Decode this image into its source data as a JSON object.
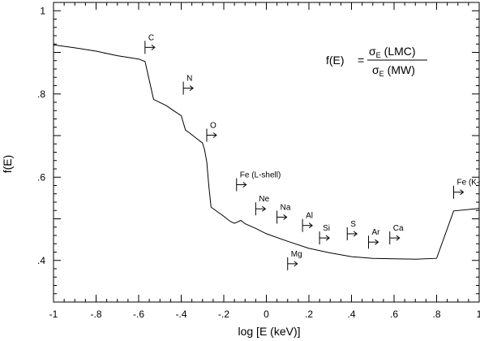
{
  "chart_data": {
    "type": "line",
    "xlabel": "log [E (keV)]",
    "ylabel": "f(E)",
    "xlim": [
      -1,
      1
    ],
    "ylim": [
      0.3,
      1.02
    ],
    "x_ticks": [
      {
        "value": -1,
        "label": "-1"
      },
      {
        "value": -0.8,
        "label": "-.8"
      },
      {
        "value": -0.6,
        "label": "-.6"
      },
      {
        "value": -0.4,
        "label": "-.4"
      },
      {
        "value": -0.2,
        "label": "-.2"
      },
      {
        "value": 0,
        "label": "0"
      },
      {
        "value": 0.2,
        "label": ".2"
      },
      {
        "value": 0.4,
        "label": ".4"
      },
      {
        "value": 0.6,
        "label": ".6"
      },
      {
        "value": 0.8,
        "label": ".8"
      },
      {
        "value": 1,
        "label": "1"
      }
    ],
    "y_ticks": [
      {
        "value": 0.4,
        "label": ".4"
      },
      {
        "value": 0.6,
        "label": ".6"
      },
      {
        "value": 0.8,
        "label": ".8"
      },
      {
        "value": 1.0,
        "label": "1"
      }
    ],
    "series": [
      {
        "x": [
          -1,
          -0.9,
          -0.8,
          -0.7,
          -0.6,
          -0.57,
          -0.53,
          -0.47,
          -0.43,
          -0.4,
          -0.38,
          -0.36,
          -0.33,
          -0.3,
          -0.29,
          -0.28,
          -0.27,
          -0.26,
          -0.2,
          -0.17,
          -0.15,
          -0.12,
          -0.1,
          -0.05,
          0,
          0.1,
          0.2,
          0.3,
          0.4,
          0.5,
          0.6,
          0.7,
          0.8,
          0.88,
          1
        ],
        "y": [
          0.918,
          0.911,
          0.903,
          0.892,
          0.884,
          0.878,
          0.787,
          0.772,
          0.758,
          0.748,
          0.713,
          0.706,
          0.694,
          0.682,
          0.665,
          0.637,
          0.578,
          0.528,
          0.506,
          0.494,
          0.489,
          0.496,
          0.488,
          0.477,
          0.464,
          0.446,
          0.429,
          0.418,
          0.409,
          0.405,
          0.404,
          0.403,
          0.405,
          0.519,
          0.525
        ]
      }
    ],
    "formula": {
      "lhs": "f(E)",
      "eq": "=",
      "num_sigma": "σ",
      "num_sub": "E",
      "num_text": "(LMC)",
      "den_sigma": "σ",
      "den_sub": "E",
      "den_text": "(MW)"
    },
    "edges": [
      {
        "label": "C",
        "x": -0.57,
        "y": 0.912
      },
      {
        "label": "N",
        "x": -0.39,
        "y": 0.814
      },
      {
        "label": "O",
        "x": -0.28,
        "y": 0.701
      },
      {
        "label": "Fe (L-shell)",
        "x": -0.14,
        "y": 0.582
      },
      {
        "label": "Ne",
        "x": -0.05,
        "y": 0.524
      },
      {
        "label": "Na",
        "x": 0.05,
        "y": 0.504
      },
      {
        "label": "Mg",
        "x": 0.1,
        "y": 0.392
      },
      {
        "label": "Al",
        "x": 0.17,
        "y": 0.484
      },
      {
        "label": "Si",
        "x": 0.25,
        "y": 0.454
      },
      {
        "label": "S",
        "x": 0.38,
        "y": 0.464
      },
      {
        "label": "Ar",
        "x": 0.48,
        "y": 0.444
      },
      {
        "label": "Ca",
        "x": 0.58,
        "y": 0.454
      },
      {
        "label": "Fe (K-shell)",
        "x": 0.88,
        "y": 0.564
      }
    ]
  }
}
